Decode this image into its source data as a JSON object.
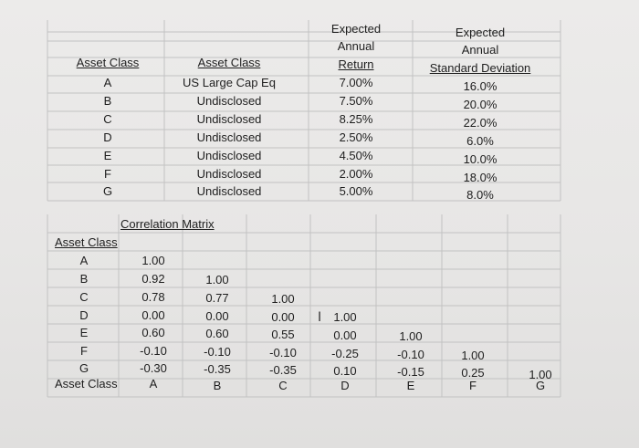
{
  "top_table": {
    "headers": {
      "asset_class_a": "Asset Class",
      "asset_class_b": "Asset Class",
      "expected": "Expected",
      "annual": "Annual",
      "return": "Return",
      "expected2": "Expected",
      "annual2": "Annual",
      "std_dev": "Standard Deviation"
    },
    "rows": [
      {
        "cls": "A",
        "name": "US Large Cap Eq",
        "ret": "7.00%",
        "sd": "16.0%"
      },
      {
        "cls": "B",
        "name": "Undisclosed",
        "ret": "7.50%",
        "sd": "20.0%"
      },
      {
        "cls": "C",
        "name": "Undisclosed",
        "ret": "8.25%",
        "sd": "22.0%"
      },
      {
        "cls": "D",
        "name": "Undisclosed",
        "ret": "2.50%",
        "sd": "6.0%"
      },
      {
        "cls": "E",
        "name": "Undisclosed",
        "ret": "4.50%",
        "sd": "10.0%"
      },
      {
        "cls": "F",
        "name": "Undisclosed",
        "ret": "2.00%",
        "sd": "18.0%"
      },
      {
        "cls": "G",
        "name": "Undisclosed",
        "ret": "5.00%",
        "sd": "8.0%"
      }
    ]
  },
  "corr": {
    "title": "Correlation Matrix",
    "row_header": "Asset Class",
    "col_header": "Asset Class",
    "row_labels": [
      "A",
      "B",
      "C",
      "D",
      "E",
      "F",
      "G"
    ],
    "col_labels": [
      "A",
      "B",
      "C",
      "D",
      "E",
      "F",
      "G"
    ],
    "matrix": [
      [
        "1.00"
      ],
      [
        "0.92",
        "1.00"
      ],
      [
        "0.78",
        "0.77",
        "1.00"
      ],
      [
        "0.00",
        "0.00",
        "0.00",
        "1.00"
      ],
      [
        "0.60",
        "0.60",
        "0.55",
        "0.00",
        "1.00"
      ],
      [
        "-0.10",
        "-0.10",
        "-0.10",
        "-0.25",
        "-0.10",
        "1.00"
      ],
      [
        "-0.30",
        "-0.35",
        "-0.35",
        "0.10",
        "-0.15",
        "0.25",
        "1.00"
      ]
    ]
  },
  "cursor_icon": "text-cursor-icon"
}
